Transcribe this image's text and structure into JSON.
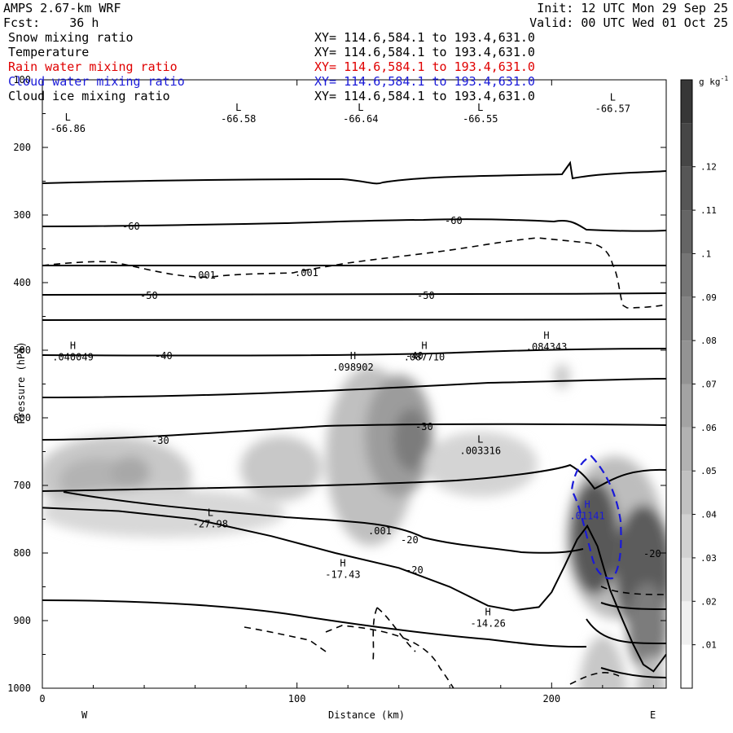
{
  "header": {
    "model": "AMPS 2.67-km WRF",
    "fcst": "Fcst:    36 h",
    "init": "Init: 12 UTC Mon 29 Sep 25",
    "valid": "Valid: 00 UTC Wed 01 Oct 25"
  },
  "fields": [
    {
      "name": "Snow mixing ratio",
      "xy": "XY= 114.6,584.1 to 193.4,631.0",
      "color": "#000000"
    },
    {
      "name": "Temperature",
      "xy": "XY= 114.6,584.1 to 193.4,631.0",
      "color": "#000000"
    },
    {
      "name": "Rain water mixing ratio",
      "xy": "XY= 114.6,584.1 to 193.4,631.0",
      "color": "#e00000"
    },
    {
      "name": "Cloud water mixing ratio",
      "xy": "XY= 114.6,584.1 to 193.4,631.0",
      "color": "#1a1ad8"
    },
    {
      "name": "Cloud ice mixing ratio",
      "xy": "XY= 114.6,584.1 to 193.4,631.0",
      "color": "#000000"
    }
  ],
  "chart_data": {
    "type": "contour-cross-section",
    "xlabel": "Distance (km)",
    "ylabel": "Pressure (hPa)",
    "xlim": [
      0,
      245
    ],
    "ylim": [
      1000,
      100
    ],
    "x_ticks": [
      "0",
      "100",
      "200"
    ],
    "y_ticks": [
      "100",
      "200",
      "300",
      "400",
      "500",
      "600",
      "700",
      "800",
      "900",
      "1000"
    ],
    "x_end_labels": {
      "left": "W",
      "right": "E"
    },
    "colorbar": {
      "unit": "g kg",
      "unit_exp": "-1",
      "ticks": [
        ".01",
        ".02",
        ".03",
        ".04",
        ".05",
        ".06",
        ".07",
        ".08",
        ".09",
        ".1",
        ".11",
        ".12"
      ]
    },
    "temperature_labels": [
      "-60",
      "-60",
      "-50",
      "-50",
      "-40",
      "-40",
      "-30",
      "-30",
      "-20",
      "-20",
      "-20"
    ],
    "snow_labels": [
      ".001",
      ".001",
      ".001"
    ],
    "extrema": [
      {
        "kind": "L",
        "value": "-66.86",
        "x": 10,
        "p": 160
      },
      {
        "kind": "L",
        "value": "-66.58",
        "x": 77,
        "p": 146
      },
      {
        "kind": "L",
        "value": "-66.64",
        "x": 125,
        "p": 146
      },
      {
        "kind": "L",
        "value": "-66.55",
        "x": 172,
        "p": 146
      },
      {
        "kind": "L",
        "value": "-66.57",
        "x": 224,
        "p": 131
      },
      {
        "kind": "H",
        "value": ".040049",
        "x": 12,
        "p": 498
      },
      {
        "kind": "H",
        "value": ".098902",
        "x": 122,
        "p": 513
      },
      {
        "kind": "H",
        "value": ".087710",
        "x": 150,
        "p": 498
      },
      {
        "kind": "H",
        "value": ".084343",
        "x": 198,
        "p": 483
      },
      {
        "kind": "L",
        "value": ".003316",
        "x": 172,
        "p": 637
      },
      {
        "kind": "L",
        "value": "-27.98",
        "x": 66,
        "p": 745
      },
      {
        "kind": "H",
        "value": "-17.43",
        "x": 118,
        "p": 820
      },
      {
        "kind": "H",
        "value": "-14.26",
        "x": 175,
        "p": 892
      },
      {
        "kind": "H",
        "value": ".01141",
        "x": 214,
        "p": 733,
        "color": "blue"
      }
    ],
    "terrain_surface": [
      [
        0,
        733
      ],
      [
        30,
        738
      ],
      [
        60,
        750
      ],
      [
        90,
        775
      ],
      [
        115,
        800
      ],
      [
        140,
        822
      ],
      [
        160,
        850
      ],
      [
        175,
        878
      ],
      [
        185,
        885
      ],
      [
        195,
        880
      ],
      [
        200,
        858
      ],
      [
        205,
        820
      ],
      [
        210,
        780
      ],
      [
        214,
        760
      ],
      [
        218,
        790
      ],
      [
        223,
        855
      ],
      [
        228,
        900
      ],
      [
        232,
        935
      ],
      [
        236,
        965
      ],
      [
        240,
        975
      ],
      [
        245,
        950
      ]
    ]
  }
}
